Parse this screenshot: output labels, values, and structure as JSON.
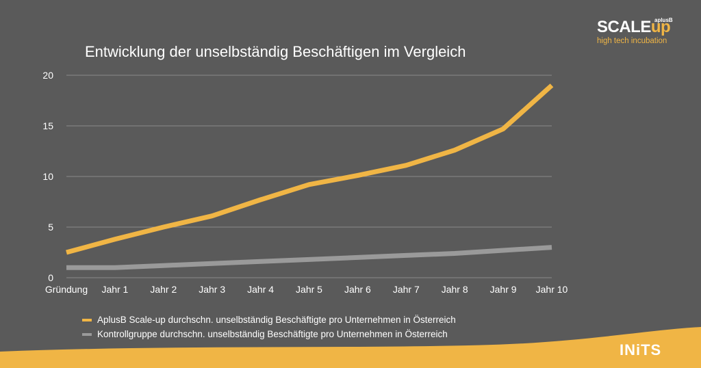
{
  "branding": {
    "scaleup_word": "SCALE",
    "scaleup_accent": "up",
    "scaleup_small": "aplusB",
    "scaleup_tagline": "high tech incubation",
    "inits_logo": "INiTS"
  },
  "colors": {
    "background": "#5a5a5a",
    "accent": "#f0b545",
    "gray_series": "#9a9a9a",
    "gridline": "#8a8a8a"
  },
  "chart_data": {
    "type": "line",
    "title": "Entwicklung der unselbständig Beschäftigen im Vergleich",
    "categories": [
      "Gründung",
      "Jahr 1",
      "Jahr 2",
      "Jahr 3",
      "Jahr 4",
      "Jahr 5",
      "Jahr 6",
      "Jahr 7",
      "Jahr 8",
      "Jahr 9",
      "Jahr 10"
    ],
    "yticks": [
      "0",
      "5",
      "10",
      "15",
      "20"
    ],
    "ylim": [
      0,
      20
    ],
    "grid": true,
    "legend_position": "bottom-left",
    "series": [
      {
        "name": "AplusB Scale-up durchschn. unselbständig Beschäftigte pro Unternehmen in Österreich",
        "color": "#f0b545",
        "values": [
          2.5,
          3.8,
          5.0,
          6.1,
          7.7,
          9.2,
          10.1,
          11.1,
          12.6,
          14.7,
          19.0
        ]
      },
      {
        "name": "Kontrollgruppe durchschn. unselbständig Beschäftigte pro Unternehmen in Österreich",
        "color": "#9a9a9a",
        "values": [
          1.0,
          1.0,
          1.2,
          1.4,
          1.6,
          1.8,
          2.0,
          2.2,
          2.4,
          2.7,
          3.0
        ]
      }
    ]
  }
}
